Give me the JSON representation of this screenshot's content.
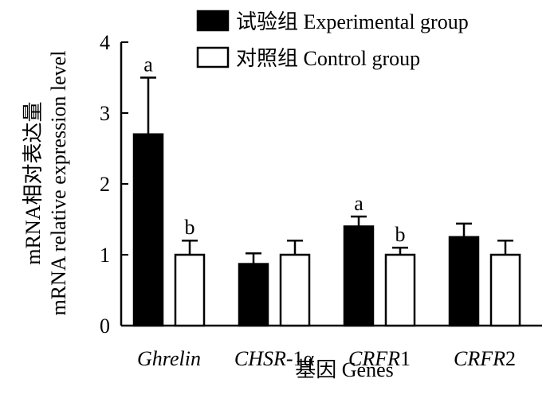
{
  "chart_data": {
    "type": "bar",
    "categories": [
      {
        "italic": "Ghrelin",
        "plain": ""
      },
      {
        "italic": "CHSR",
        "plain": "-1α"
      },
      {
        "italic": "CRFR",
        "plain": "1"
      },
      {
        "italic": "CRFR",
        "plain": "2"
      }
    ],
    "series": [
      {
        "name": "试验组 Experimental group",
        "fill": "#000000",
        "values": [
          2.7,
          0.87,
          1.4,
          1.25
        ],
        "errors": [
          0.8,
          0.15,
          0.14,
          0.19
        ],
        "sig": [
          "a",
          "",
          "a",
          ""
        ]
      },
      {
        "name": "对照组 Control group",
        "fill": "#ffffff",
        "values": [
          1.0,
          1.0,
          1.0,
          1.0
        ],
        "errors": [
          0.2,
          0.2,
          0.1,
          0.2
        ],
        "sig": [
          "b",
          "",
          "b",
          ""
        ]
      }
    ],
    "xlabel": "基因  Genes",
    "ylabel_line1": "mRNA相对表达量",
    "ylabel_line2": "mRNA relative expression level",
    "ylim": [
      0,
      4
    ],
    "yticks": [
      "0",
      "1",
      "2",
      "3",
      "4"
    ],
    "grid": false,
    "legend_position": "top-right"
  }
}
